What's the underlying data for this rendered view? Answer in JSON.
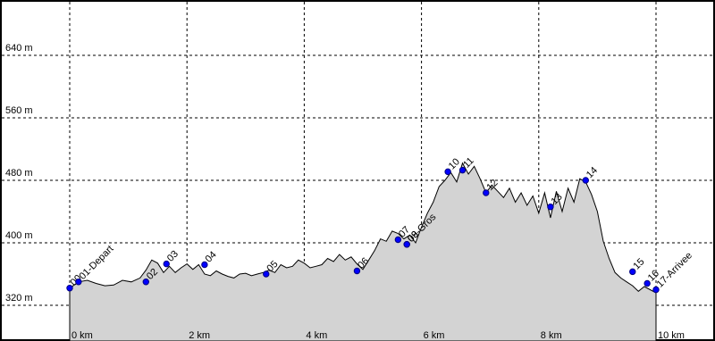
{
  "chart_data": {
    "type": "area",
    "title": "",
    "xlabel": "",
    "ylabel": "",
    "x_unit": "km",
    "y_unit": "m",
    "xlim": [
      0,
      10.2
    ],
    "ylim": [
      306,
      710
    ],
    "x_ticks": [
      0,
      2,
      4,
      6,
      8,
      10
    ],
    "x_tick_labels": [
      "0 km",
      "2 km",
      "4 km",
      "6 km",
      "8 km",
      "10 km"
    ],
    "y_ticks": [
      320,
      400,
      480,
      560,
      640
    ],
    "y_tick_labels": [
      "320 m",
      "400 m",
      "480 m",
      "560 m",
      "640 m"
    ],
    "grid": true,
    "profile": {
      "x": [
        0,
        0.15,
        0.3,
        0.45,
        0.6,
        0.75,
        0.9,
        1.05,
        1.2,
        1.3,
        1.4,
        1.5,
        1.6,
        1.7,
        1.8,
        1.9,
        2.0,
        2.1,
        2.2,
        2.3,
        2.4,
        2.5,
        2.6,
        2.7,
        2.8,
        2.9,
        3.0,
        3.1,
        3.2,
        3.3,
        3.4,
        3.5,
        3.6,
        3.7,
        3.8,
        3.9,
        4.0,
        4.1,
        4.2,
        4.3,
        4.4,
        4.5,
        4.6,
        4.7,
        4.8,
        4.9,
        5.0,
        5.1,
        5.2,
        5.3,
        5.4,
        5.5,
        5.6,
        5.7,
        5.8,
        5.9,
        6.0,
        6.1,
        6.2,
        6.3,
        6.4,
        6.5,
        6.6,
        6.7,
        6.8,
        6.9,
        7.0,
        7.1,
        7.2,
        7.3,
        7.4,
        7.5,
        7.6,
        7.7,
        7.8,
        7.9,
        8.0,
        8.1,
        8.2,
        8.3,
        8.4,
        8.5,
        8.6,
        8.7,
        8.8,
        8.9,
        9.0,
        9.1,
        9.2,
        9.3,
        9.4,
        9.5,
        9.6,
        9.7,
        9.8,
        9.9,
        10.0
      ],
      "y": [
        342,
        350,
        352,
        348,
        345,
        346,
        352,
        350,
        355,
        365,
        378,
        374,
        362,
        370,
        362,
        368,
        373,
        366,
        372,
        360,
        358,
        364,
        360,
        357,
        355,
        360,
        361,
        358,
        360,
        362,
        365,
        362,
        372,
        368,
        370,
        378,
        374,
        368,
        370,
        372,
        380,
        376,
        385,
        378,
        382,
        373,
        366,
        378,
        390,
        405,
        402,
        415,
        412,
        405,
        410,
        400,
        420,
        438,
        452,
        472,
        480,
        490,
        478,
        502,
        488,
        498,
        482,
        464,
        474,
        466,
        458,
        470,
        452,
        464,
        448,
        460,
        438,
        464,
        432,
        466,
        440,
        470,
        452,
        482,
        478,
        462,
        440,
        402,
        380,
        362,
        355,
        350,
        345,
        338,
        344,
        340,
        336
      ]
    },
    "waypoints": [
      {
        "name": "00",
        "x": 0.0,
        "y": 342
      },
      {
        "name": "01-Depart",
        "x": 0.15,
        "y": 350
      },
      {
        "name": "02",
        "x": 1.3,
        "y": 350
      },
      {
        "name": "03",
        "x": 1.65,
        "y": 373
      },
      {
        "name": "04",
        "x": 2.3,
        "y": 372
      },
      {
        "name": "05",
        "x": 3.35,
        "y": 360
      },
      {
        "name": "06",
        "x": 4.9,
        "y": 364
      },
      {
        "name": "07",
        "x": 5.6,
        "y": 404
      },
      {
        "name": "08",
        "x": 5.75,
        "y": 398
      },
      {
        "name": "09-Gros",
        "x": 5.75,
        "y": 398
      },
      {
        "name": "10",
        "x": 6.45,
        "y": 491
      },
      {
        "name": "11",
        "x": 6.7,
        "y": 493
      },
      {
        "name": "12",
        "x": 7.1,
        "y": 464
      },
      {
        "name": "13",
        "x": 8.2,
        "y": 446
      },
      {
        "name": "14",
        "x": 8.8,
        "y": 480
      },
      {
        "name": "15",
        "x": 9.6,
        "y": 363
      },
      {
        "name": "16",
        "x": 9.85,
        "y": 348
      },
      {
        "name": "17-Arrivee",
        "x": 10.0,
        "y": 340
      }
    ]
  }
}
